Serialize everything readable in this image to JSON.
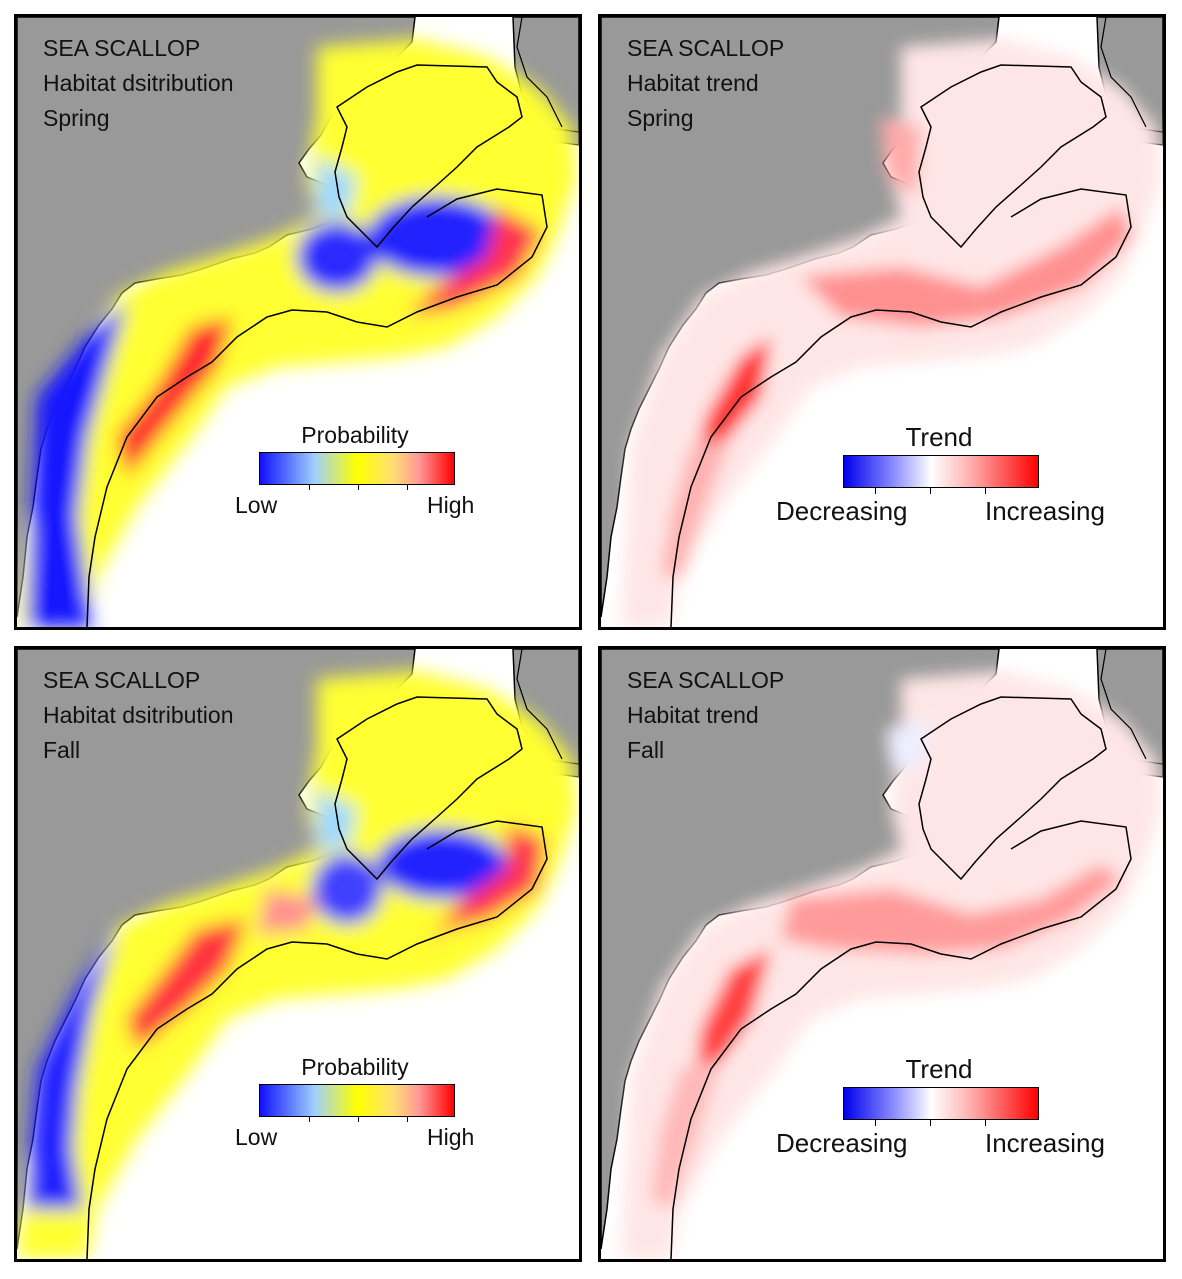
{
  "panels": [
    {
      "species": "SEA SCALLOP",
      "measure": "Habitat dsitribution",
      "season": "Spring",
      "legend": {
        "title": "Probability",
        "low": "Low",
        "high": "High"
      }
    },
    {
      "species": "SEA SCALLOP",
      "measure": "Habitat trend",
      "season": "Spring",
      "legend": {
        "title": "Trend",
        "low": "Decreasing",
        "high": "Increasing"
      }
    },
    {
      "species": "SEA SCALLOP",
      "measure": "Habitat dsitribution",
      "season": "Fall",
      "legend": {
        "title": "Probability",
        "low": "Low",
        "high": "High"
      }
    },
    {
      "species": "SEA SCALLOP",
      "measure": "Habitat trend",
      "season": "Fall",
      "legend": {
        "title": "Trend",
        "low": "Decreasing",
        "high": "Increasing"
      }
    }
  ],
  "colors": {
    "land": "#999999",
    "ocean": "#ffffff",
    "probability_scale": [
      "#1010ff",
      "#9ecfff",
      "#ffff00",
      "#ff9999",
      "#ff0000"
    ],
    "trend_scale": [
      "#1010ff",
      "#ffffff",
      "#ff0000"
    ]
  }
}
